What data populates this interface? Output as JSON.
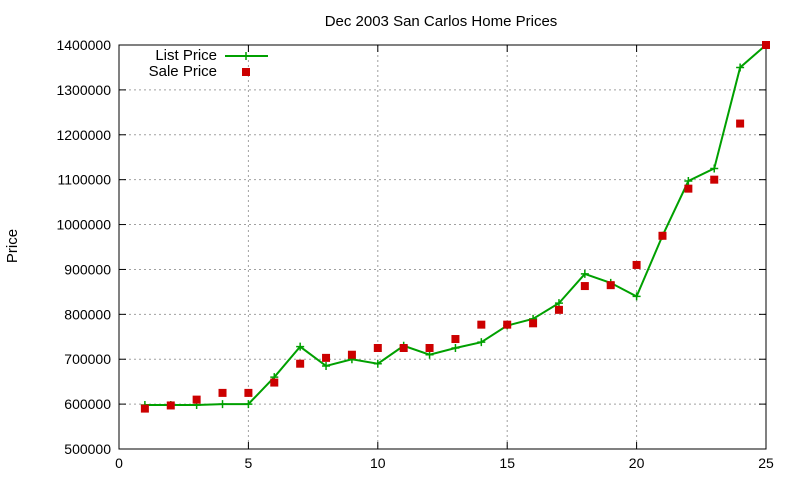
{
  "chart_data": {
    "type": "line",
    "title": "Dec 2003 San Carlos Home Prices",
    "xlabel": "",
    "ylabel": "Price",
    "xlim": [
      0,
      25
    ],
    "ylim": [
      500000,
      1400000
    ],
    "x_ticks": [
      0,
      5,
      10,
      15,
      20,
      25
    ],
    "y_ticks": [
      500000,
      600000,
      700000,
      800000,
      900000,
      1000000,
      1100000,
      1200000,
      1300000,
      1400000
    ],
    "grid": true,
    "legend": "top-left",
    "series": [
      {
        "name": "List Price",
        "kind": "line-with-plus-markers",
        "color": "#00a000",
        "x": [
          1,
          2,
          3,
          4,
          5,
          6,
          7,
          8,
          9,
          10,
          11,
          12,
          13,
          14,
          15,
          16,
          17,
          18,
          19,
          20,
          21,
          22,
          23,
          24,
          25
        ],
        "y": [
          598000,
          598000,
          598000,
          600000,
          600000,
          660000,
          728000,
          685000,
          700000,
          690000,
          730000,
          710000,
          725000,
          738000,
          775000,
          790000,
          825000,
          890000,
          870000,
          840000,
          975000,
          1097000,
          1125000,
          1350000,
          1400000
        ]
      },
      {
        "name": "Sale Price",
        "kind": "square-markers",
        "color": "#cc0000",
        "x": [
          1,
          2,
          3,
          4,
          5,
          6,
          7,
          8,
          9,
          10,
          11,
          12,
          13,
          14,
          15,
          16,
          17,
          18,
          19,
          20,
          21,
          22,
          23,
          24,
          25
        ],
        "y": [
          590000,
          597000,
          610000,
          625000,
          625000,
          648000,
          690000,
          703000,
          710000,
          725000,
          725000,
          725000,
          745000,
          777000,
          777000,
          780000,
          810000,
          863000,
          865000,
          910000,
          975000,
          1080000,
          1100000,
          1225000,
          1400000
        ]
      }
    ]
  }
}
